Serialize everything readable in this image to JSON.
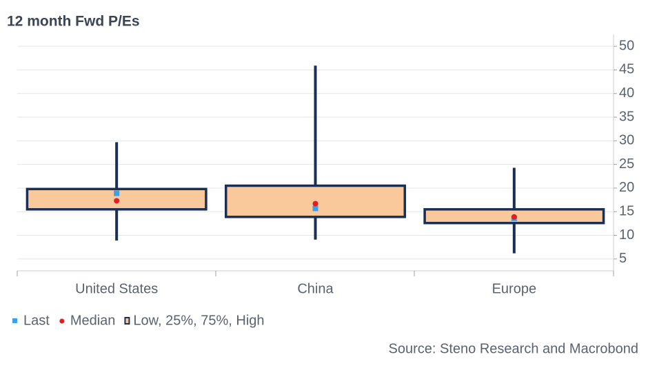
{
  "chart_data": {
    "type": "box",
    "title": "12 month Fwd P/Es",
    "categories": [
      "United States",
      "China",
      "Europe"
    ],
    "box": {
      "name": "Low, 25%, 75%, High",
      "fill": "#f9c89b",
      "stroke": "#1b2f55",
      "low": [
        8.9,
        9.1,
        6.2
      ],
      "q1": [
        15.5,
        13.9,
        12.6
      ],
      "q3": [
        19.8,
        20.5,
        15.5
      ],
      "high": [
        29.7,
        45.9,
        24.3
      ]
    },
    "series": [
      {
        "name": "Last",
        "color": "#3ea0e8",
        "marker": "square",
        "values": [
          18.9,
          15.7,
          13.6
        ]
      },
      {
        "name": "Median",
        "color": "#e02020",
        "marker": "circle",
        "values": [
          17.3,
          16.7,
          13.9
        ]
      }
    ],
    "ylim": [
      2.5,
      52.5
    ],
    "yticks": [
      5,
      10,
      15,
      20,
      25,
      30,
      35,
      40,
      45,
      50
    ],
    "grid": true,
    "source": "Source: Steno Research and Macrobond"
  }
}
